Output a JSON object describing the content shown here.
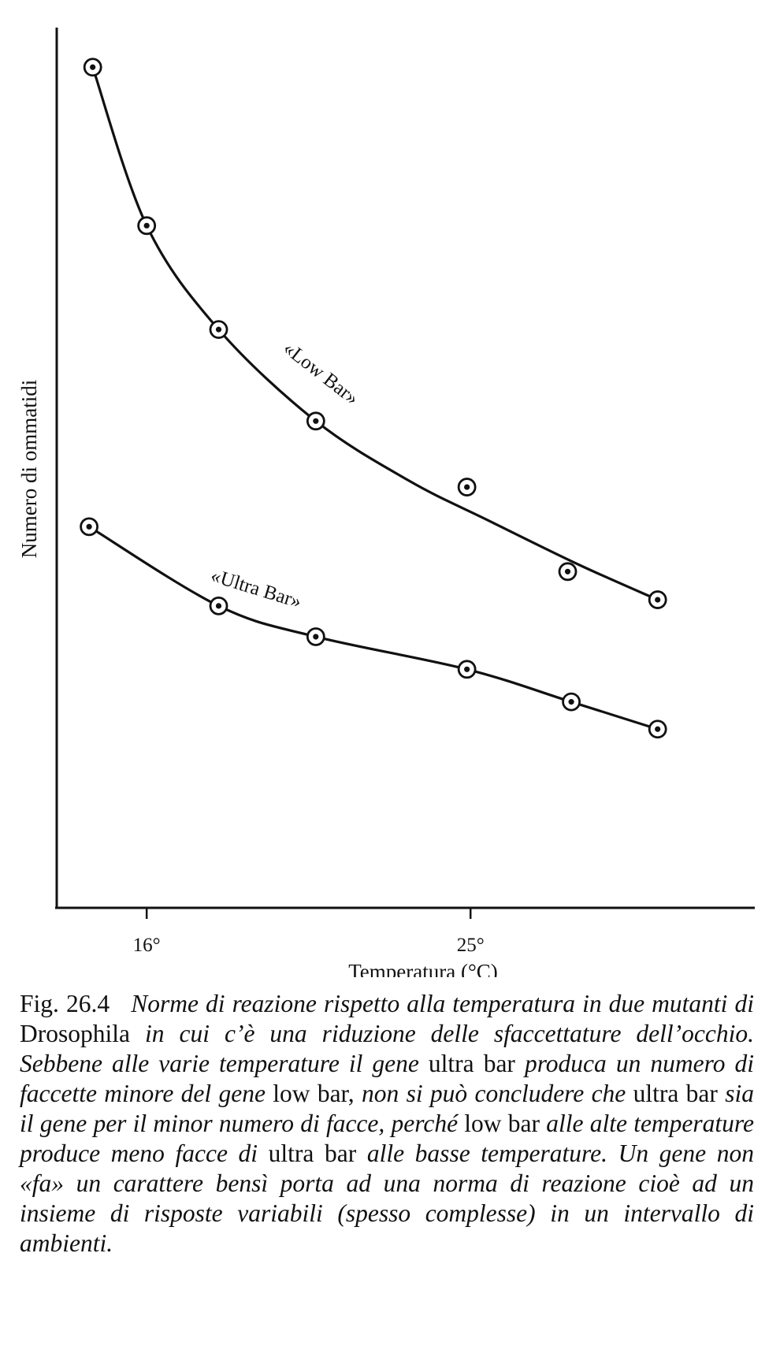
{
  "chart_data": {
    "type": "scatter",
    "title": "",
    "xlabel": "Temperatura (°C)",
    "ylabel": "Numero di ommatidi",
    "xticks": [
      {
        "value": 16,
        "label": "16°"
      },
      {
        "value": 25,
        "label": "25°"
      }
    ],
    "xlim": [
      13.5,
      32.9
    ],
    "ylim": [
      0,
      100
    ],
    "grid": false,
    "legend": "none",
    "series": [
      {
        "name": "«Low Bar»",
        "x": [
          14.5,
          16.0,
          18.0,
          20.7,
          24.9,
          27.7,
          30.2
        ],
        "y": [
          95.5,
          77.5,
          65.7,
          55.3,
          47.8,
          38.2,
          35.0
        ],
        "fit": [
          [
            14.5,
            95.5
          ],
          [
            16.0,
            77.5
          ],
          [
            18.0,
            65.7
          ],
          [
            20.7,
            55.3
          ],
          [
            23.3,
            48.5
          ],
          [
            25.5,
            44.0
          ],
          [
            28.0,
            39.0
          ],
          [
            30.2,
            35.0
          ]
        ]
      },
      {
        "name": "«Ultra Bar»",
        "x": [
          14.4,
          18.0,
          20.7,
          24.9,
          27.8,
          30.2
        ],
        "y": [
          43.3,
          34.3,
          30.8,
          27.1,
          23.4,
          20.3
        ],
        "fit": [
          [
            14.4,
            43.3
          ],
          [
            18.0,
            34.3
          ],
          [
            20.7,
            30.8
          ],
          [
            24.9,
            27.1
          ],
          [
            27.8,
            23.4
          ],
          [
            30.2,
            20.3
          ]
        ]
      }
    ]
  },
  "caption": {
    "label": "Fig. 26.4",
    "parts": [
      {
        "t": "Norme di reazione rispetto alla temperatura in due mutanti di ",
        "s": "i"
      },
      {
        "t": "Drosophila",
        "s": "r"
      },
      {
        "t": " in cui c’è una riduzione delle sfaccettature dell’occhio. Sebbene alle varie temperature il gene ",
        "s": "i"
      },
      {
        "t": "ultra bar",
        "s": "r"
      },
      {
        "t": " produca un numero di faccette minore del gene ",
        "s": "i"
      },
      {
        "t": "low bar,",
        "s": "r"
      },
      {
        "t": " non si può concludere che ",
        "s": "i"
      },
      {
        "t": "ultra bar",
        "s": "r"
      },
      {
        "t": " sia il gene per il minor numero di facce, perché ",
        "s": "i"
      },
      {
        "t": "low bar",
        "s": "r"
      },
      {
        "t": " alle alte temperature produce meno facce di ",
        "s": "i"
      },
      {
        "t": "ultra bar",
        "s": "r"
      },
      {
        "t": " alle basse temperature. Un gene non «fa» un carattere bensì porta ad una norma di reazione cioè ad un insieme di risposte variabili (spesso complesse) in un intervallo di ambienti.",
        "s": "i"
      }
    ]
  }
}
